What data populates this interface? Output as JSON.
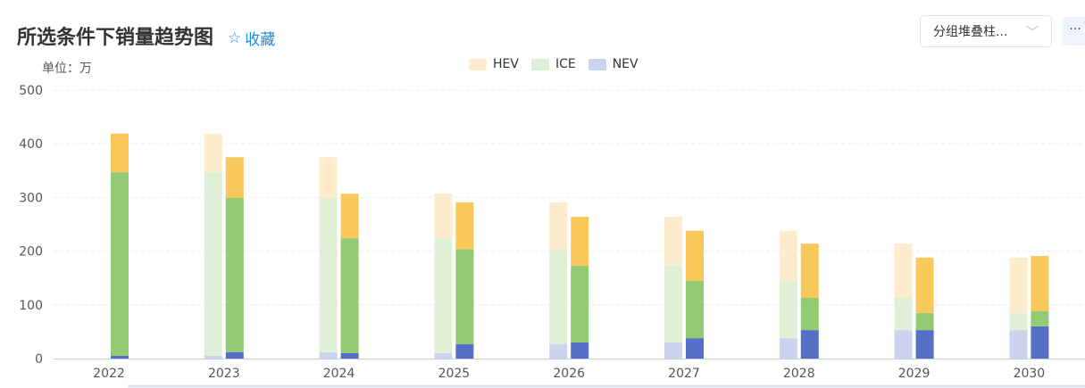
{
  "header": {
    "title": "所选条件下销量趋势图",
    "favorite_label": "收藏",
    "favorite_icon": "star-icon",
    "unit": "单位：万",
    "chart_type_select": "分组堆叠柱...",
    "more_label": "···"
  },
  "chart_data": {
    "type": "bar",
    "stacked": true,
    "grouped": true,
    "categories": [
      "2022",
      "2023",
      "2024",
      "2025",
      "2026",
      "2027",
      "2028",
      "2029",
      "2030"
    ],
    "ylim": [
      0,
      500
    ],
    "yticks": [
      "0",
      "100",
      "200",
      "300",
      "400",
      "500"
    ],
    "grid": true,
    "legend_position": "top",
    "legend": [
      "HEV",
      "ICE",
      "NEV"
    ],
    "colors": {
      "HEV": "#f9c85a",
      "ICE": "#91cb74",
      "NEV": "#5470c6",
      "HEV_faded": "#fdedcc",
      "ICE_faded": "#dff0d6",
      "NEV_faded": "#cbd4ee"
    },
    "current": {
      "NEV": [
        5,
        12,
        10,
        27,
        30,
        38,
        53,
        53,
        60
      ],
      "ICE": [
        342,
        287,
        214,
        177,
        143,
        107,
        60,
        32,
        28
      ],
      "HEV": [
        72,
        76,
        83,
        87,
        91,
        93,
        101,
        103,
        103
      ]
    },
    "previous": {
      "NEV": [
        null,
        5,
        12,
        10,
        27,
        30,
        38,
        53,
        53
      ],
      "ICE": [
        null,
        342,
        287,
        214,
        177,
        143,
        107,
        60,
        32
      ],
      "HEV": [
        null,
        72,
        76,
        83,
        87,
        91,
        93,
        101,
        103
      ]
    }
  }
}
